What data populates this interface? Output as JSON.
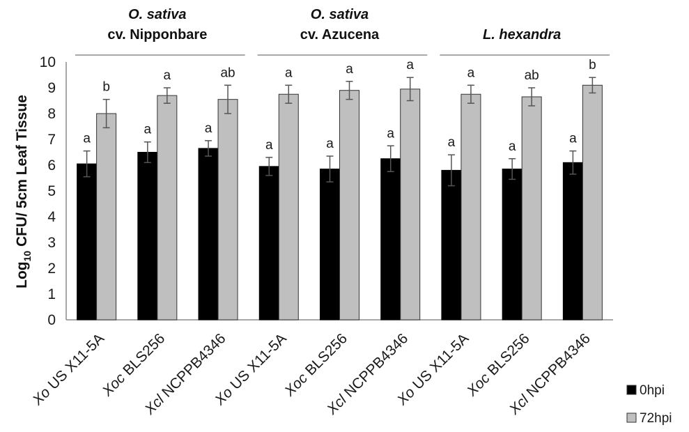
{
  "chart_data": {
    "type": "bar",
    "ylabel": "Log10 CFU/ 5cm Leaf Tissue",
    "ylabel_parts": {
      "pre": "Log",
      "sub": "10",
      "post": " CFU/ 5cm Leaf Tissue"
    },
    "ylim": [
      0,
      10
    ],
    "yticks": [
      0,
      1,
      2,
      3,
      4,
      5,
      6,
      7,
      8,
      9,
      10
    ],
    "grid": false,
    "legend_position": "bottom-right",
    "colors": {
      "0hpi": "#000000",
      "72hpi": "#bfbfbf"
    },
    "groups": [
      {
        "title_line1": "O. sativa",
        "title_line2": "cv. Nipponbare",
        "categories": [
          {
            "prefix": "Xo",
            "rest": " US X11-5A"
          },
          {
            "prefix": "Xoc",
            "rest": " BLS256"
          },
          {
            "prefix": "Xcl",
            "rest": " NCPPB4346"
          }
        ],
        "series": [
          {
            "name": "0hpi",
            "values": [
              6.05,
              6.5,
              6.65
            ],
            "errors": [
              0.5,
              0.4,
              0.3
            ],
            "letters": [
              "a",
              "a",
              "a"
            ]
          },
          {
            "name": "72hpi",
            "values": [
              8.0,
              8.7,
              8.55
            ],
            "errors": [
              0.55,
              0.3,
              0.55
            ],
            "letters": [
              "b",
              "a",
              "ab"
            ]
          }
        ]
      },
      {
        "title_line1": "O. sativa",
        "title_line2": "cv. Azucena",
        "categories": [
          {
            "prefix": "Xo",
            "rest": " US X11-5A"
          },
          {
            "prefix": "Xoc",
            "rest": " BLS256"
          },
          {
            "prefix": "Xcl",
            "rest": " NCPPB4346"
          }
        ],
        "series": [
          {
            "name": "0hpi",
            "values": [
              5.95,
              5.85,
              6.25
            ],
            "errors": [
              0.35,
              0.5,
              0.5
            ],
            "letters": [
              "a",
              "a",
              "a"
            ]
          },
          {
            "name": "72hpi",
            "values": [
              8.75,
              8.9,
              8.95
            ],
            "errors": [
              0.35,
              0.35,
              0.45
            ],
            "letters": [
              "a",
              "a",
              "a"
            ]
          }
        ]
      },
      {
        "title_line1": "L. hexandra",
        "title_line2": "",
        "categories": [
          {
            "prefix": "Xo",
            "rest": " US X11-5A"
          },
          {
            "prefix": "Xoc",
            "rest": " BLS256"
          },
          {
            "prefix": "Xcl",
            "rest": " NCPPB4346"
          }
        ],
        "series": [
          {
            "name": "0hpi",
            "values": [
              5.8,
              5.85,
              6.1
            ],
            "errors": [
              0.6,
              0.4,
              0.45
            ],
            "letters": [
              "a",
              "a",
              "a"
            ]
          },
          {
            "name": "72hpi",
            "values": [
              8.75,
              8.65,
              9.1
            ],
            "errors": [
              0.35,
              0.35,
              0.3
            ],
            "letters": [
              "a",
              "ab",
              "b"
            ]
          }
        ]
      }
    ],
    "legend": [
      {
        "name": "0hpi",
        "label": "0hpi"
      },
      {
        "name": "72hpi",
        "label": "72hpi"
      }
    ]
  }
}
